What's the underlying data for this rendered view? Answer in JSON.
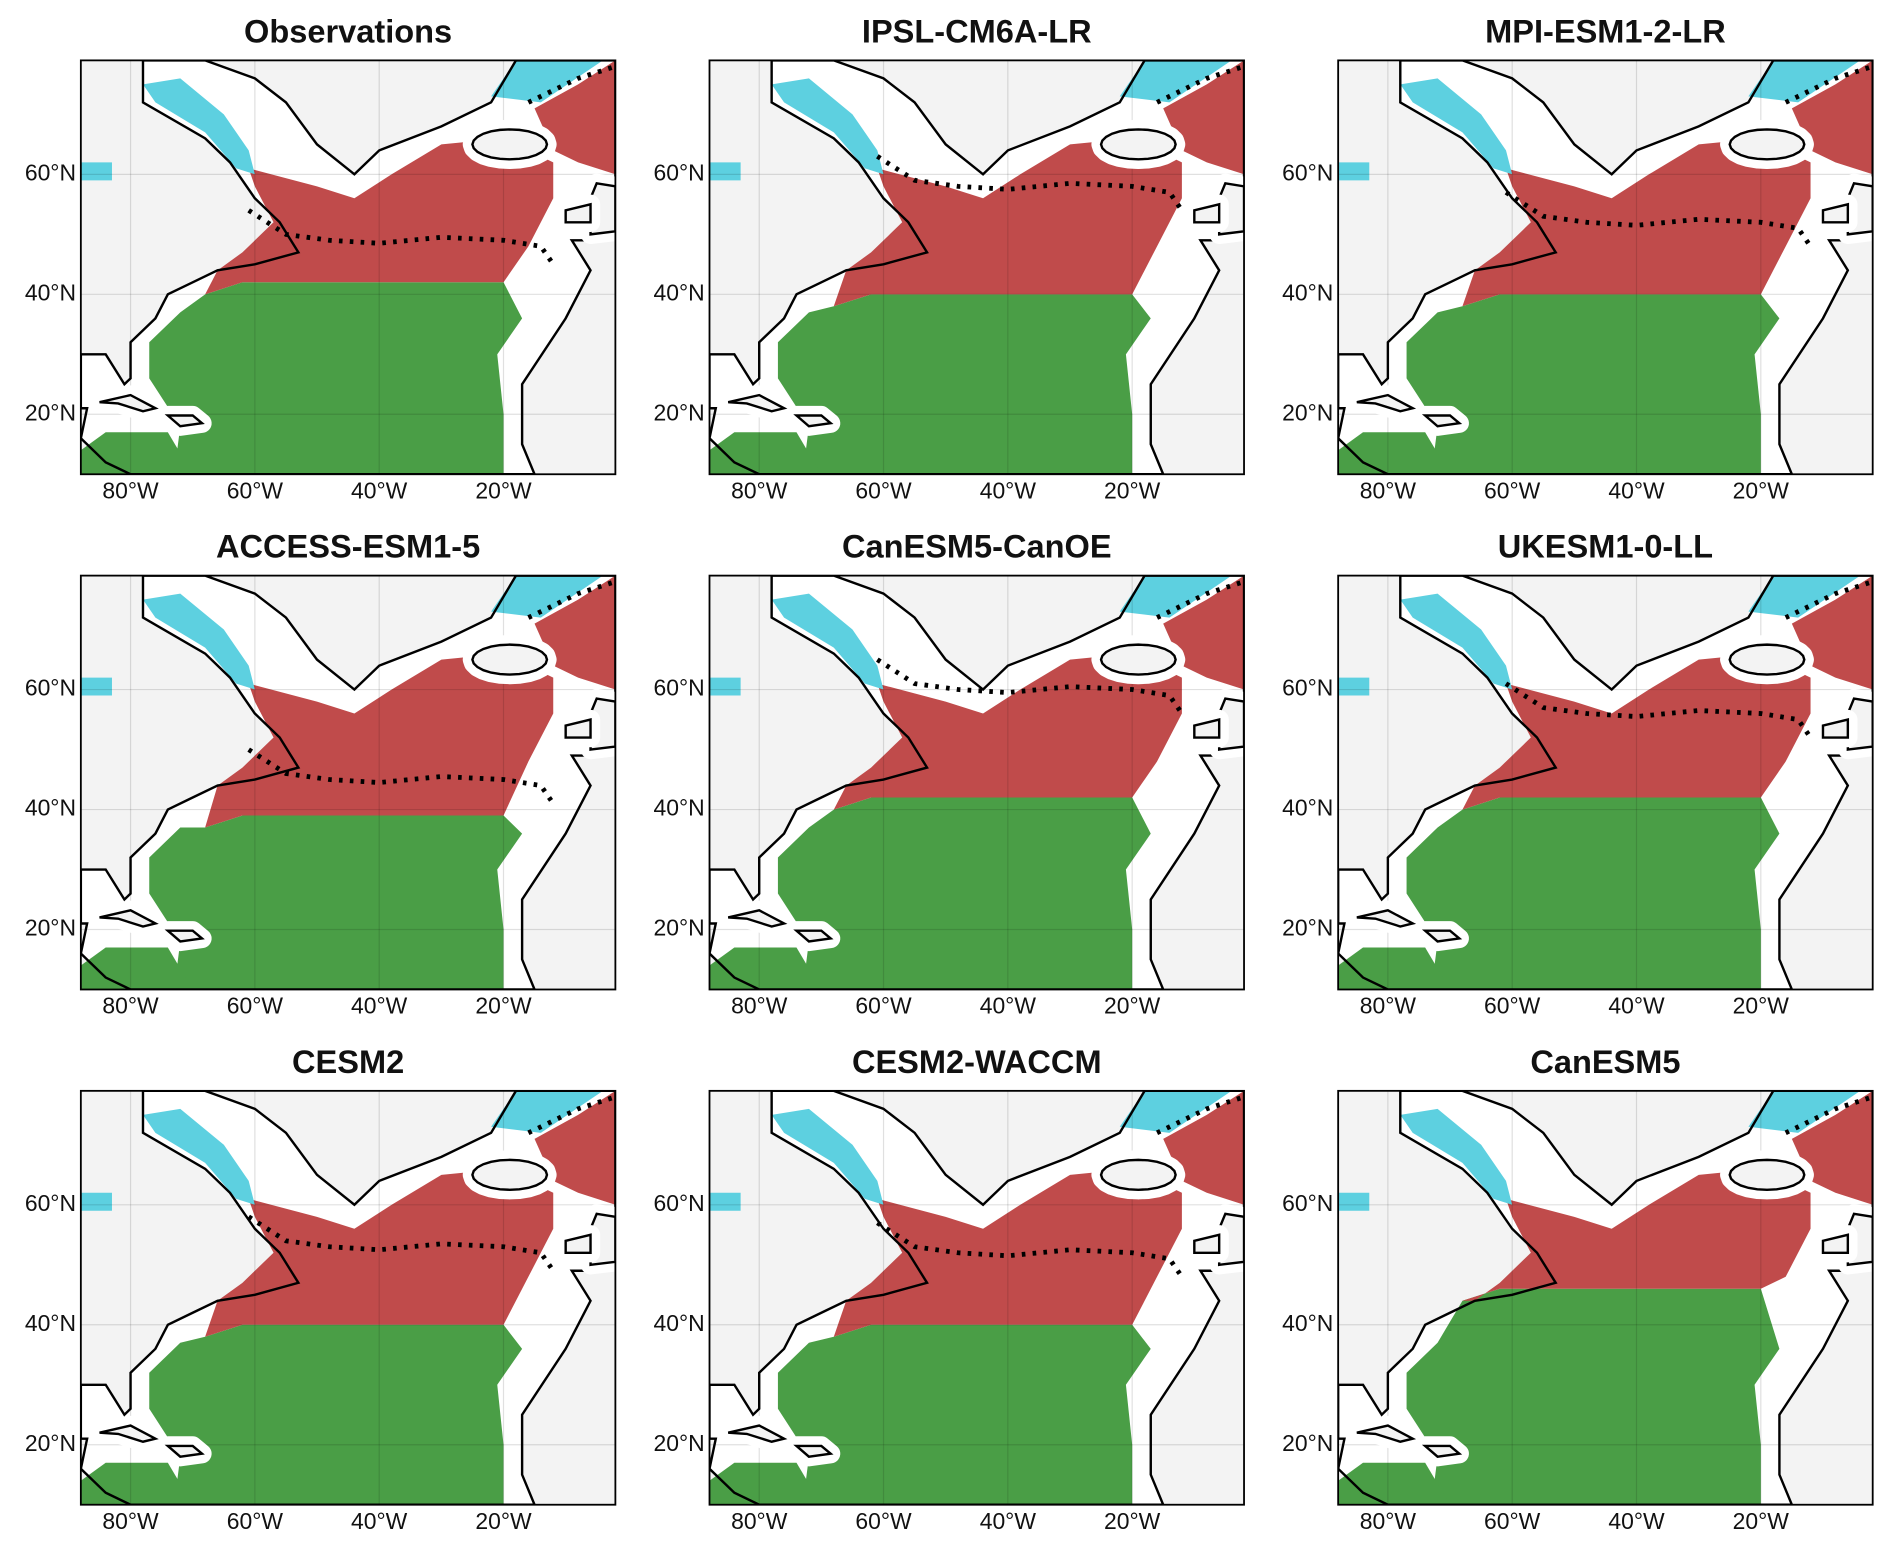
{
  "panels": [
    {
      "title": "Observations"
    },
    {
      "title": "IPSL-CM6A-LR"
    },
    {
      "title": "MPI-ESM1-2-LR"
    },
    {
      "title": "ACCESS-ESM1-5"
    },
    {
      "title": "CanESM5-CanOE"
    },
    {
      "title": "UKESM1-0-LL"
    },
    {
      "title": "CESM2"
    },
    {
      "title": "CESM2-WACCM"
    },
    {
      "title": "CanESM5"
    }
  ],
  "axes": {
    "xlim": [
      -88,
      -2
    ],
    "ylim": [
      10,
      79
    ],
    "xticks": [
      {
        "value": -80,
        "label": "80°W"
      },
      {
        "value": -60,
        "label": "60°W"
      },
      {
        "value": -40,
        "label": "40°W"
      },
      {
        "value": -20,
        "label": "20°W"
      }
    ],
    "yticks": [
      {
        "value": 20,
        "label": "20°N"
      },
      {
        "value": 40,
        "label": "40°N"
      },
      {
        "value": 60,
        "label": "60°N"
      }
    ]
  }
}
